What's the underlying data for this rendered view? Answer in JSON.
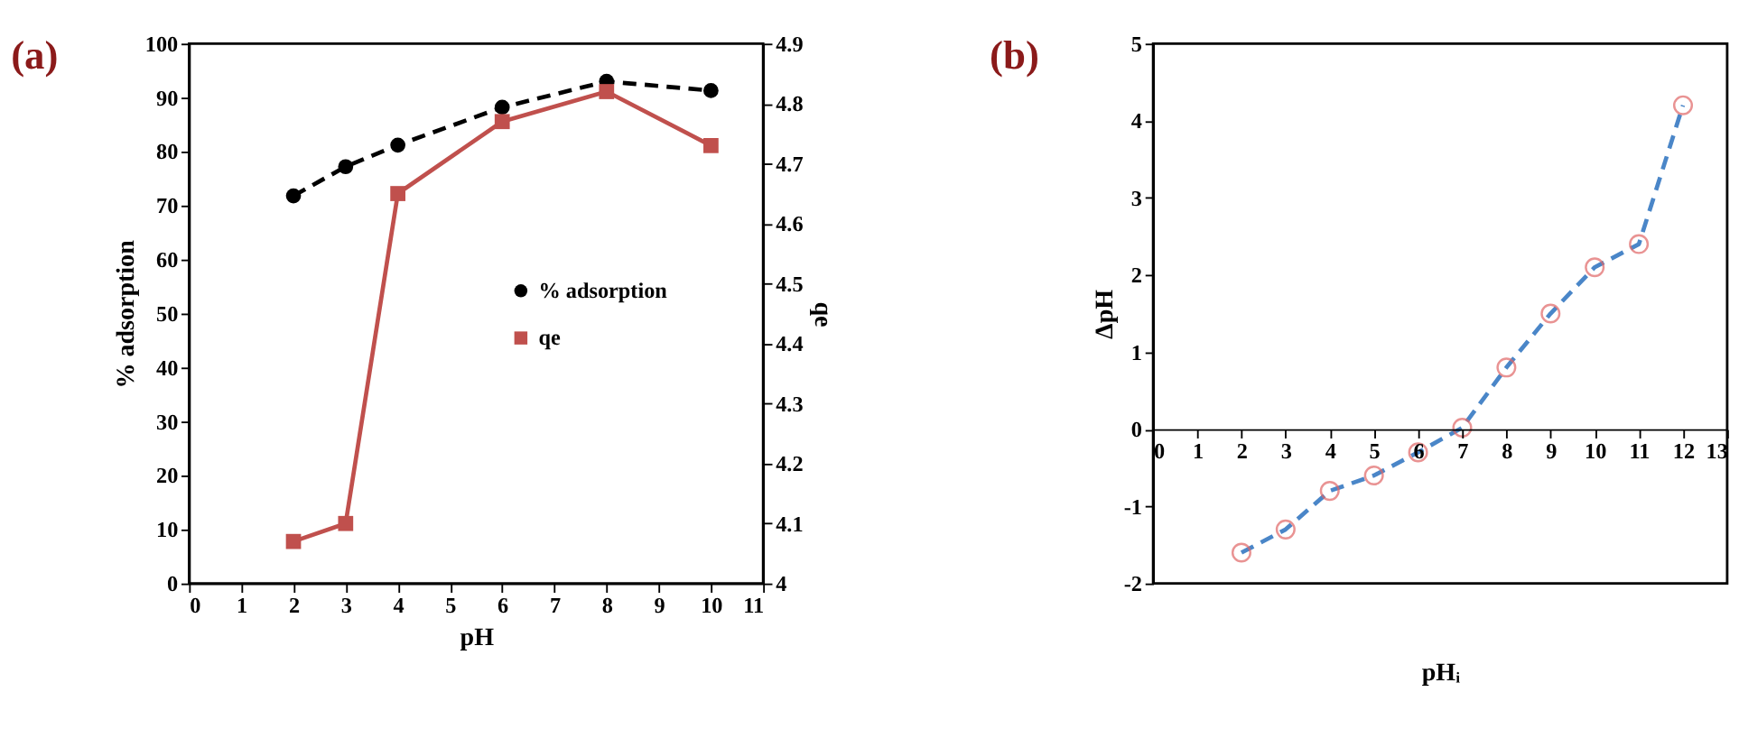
{
  "chart_data": [
    {
      "type": "line",
      "title": "(a)",
      "xlabel": "pH",
      "ylabel": "% adsorption",
      "y2label": "qe",
      "x": [
        2,
        3,
        4,
        6,
        8,
        10
      ],
      "xlim": [
        0,
        11
      ],
      "xticks": [
        0,
        1,
        2,
        3,
        4,
        5,
        6,
        7,
        8,
        9,
        10,
        11
      ],
      "ylim": [
        0,
        100
      ],
      "yticks": [
        0,
        10,
        20,
        30,
        40,
        50,
        60,
        70,
        80,
        90,
        100
      ],
      "y2lim": [
        4,
        4.9
      ],
      "y2ticks": [
        4,
        4.1,
        4.2,
        4.3,
        4.4,
        4.5,
        4.6,
        4.7,
        4.8,
        4.9
      ],
      "legend": "right",
      "grid": false,
      "series": [
        {
          "name": "% adsorption",
          "color": "#000000",
          "marker": "circle",
          "line_style": "dashed",
          "values": [
            71.8,
            77.2,
            81.2,
            88.2,
            93,
            91.3
          ]
        },
        {
          "name": "qe",
          "color": "#c0504d",
          "marker": "square",
          "line_style": "solid",
          "axis": "y2",
          "values": [
            4.07,
            4.1,
            4.65,
            4.77,
            4.82,
            4.73
          ]
        }
      ]
    },
    {
      "type": "line",
      "title": "(b)",
      "xlabel": "pHᵢ",
      "ylabel": "ΔpH",
      "x": [
        2,
        3,
        4,
        5,
        6,
        7,
        8,
        9,
        10,
        11,
        12
      ],
      "xlim": [
        0,
        13
      ],
      "xticks": [
        0,
        1,
        2,
        3,
        4,
        5,
        6,
        7,
        8,
        9,
        10,
        11,
        12,
        13
      ],
      "ylim": [
        -2,
        5
      ],
      "yticks": [
        -2,
        -1,
        0,
        1,
        2,
        3,
        4,
        5
      ],
      "legend": false,
      "grid": false,
      "series": [
        {
          "color": "#4a86c8",
          "marker": "circle",
          "line_style": "dashed",
          "colors": [
            "#e06666",
            "#e06666",
            "#e06666",
            "#e06666",
            "#e06666",
            "#e06666",
            "#e06666",
            "#e06666",
            "#e06666",
            "#e06666",
            "#e06666"
          ],
          "values": [
            -1.6,
            -1.3,
            -0.8,
            -0.6,
            -0.3,
            0.02,
            0.8,
            1.5,
            2.1,
            2.4,
            4.2
          ]
        }
      ]
    }
  ]
}
